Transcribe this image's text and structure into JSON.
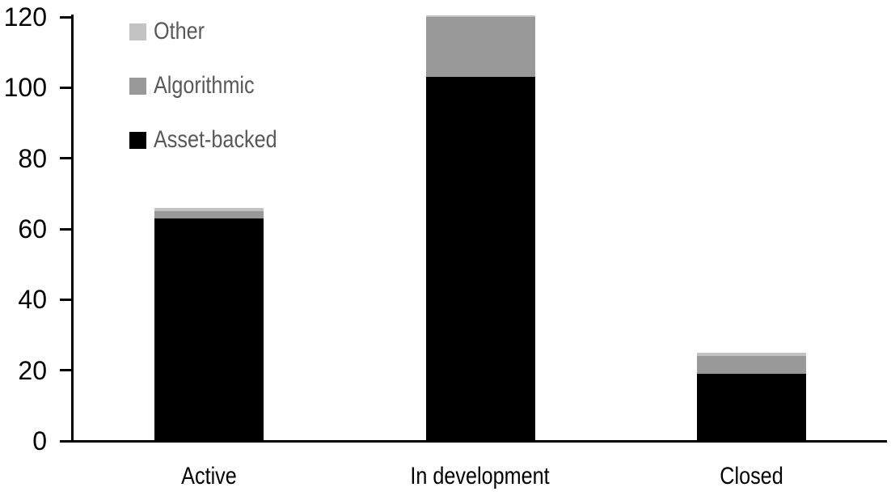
{
  "chart_data": {
    "type": "bar",
    "variant": "stacked-column",
    "title": "",
    "xlabel": "",
    "ylabel": "",
    "categories": [
      "Active",
      "In development",
      "Closed"
    ],
    "series": [
      {
        "name": "Asset-backed",
        "color": "#000000",
        "values": [
          63,
          103,
          19
        ]
      },
      {
        "name": "Algorithmic",
        "color": "#999999",
        "values": [
          2,
          17,
          5
        ]
      },
      {
        "name": "Other",
        "color": "#c3c3c3",
        "values": [
          1,
          0.5,
          1
        ]
      }
    ],
    "stack_order_bottom_to_top": [
      "Asset-backed",
      "Algorithmic",
      "Other"
    ],
    "totals": [
      66,
      120.5,
      25
    ],
    "ylim": [
      0,
      120
    ],
    "yticks": [
      0,
      20,
      40,
      60,
      80,
      100,
      120
    ],
    "grid": false,
    "axis_color": "#000000",
    "legend": {
      "position": "top-left-inside",
      "order_top_to_bottom": [
        "Other",
        "Algorithmic",
        "Asset-backed"
      ],
      "text_color": "#595959"
    }
  }
}
